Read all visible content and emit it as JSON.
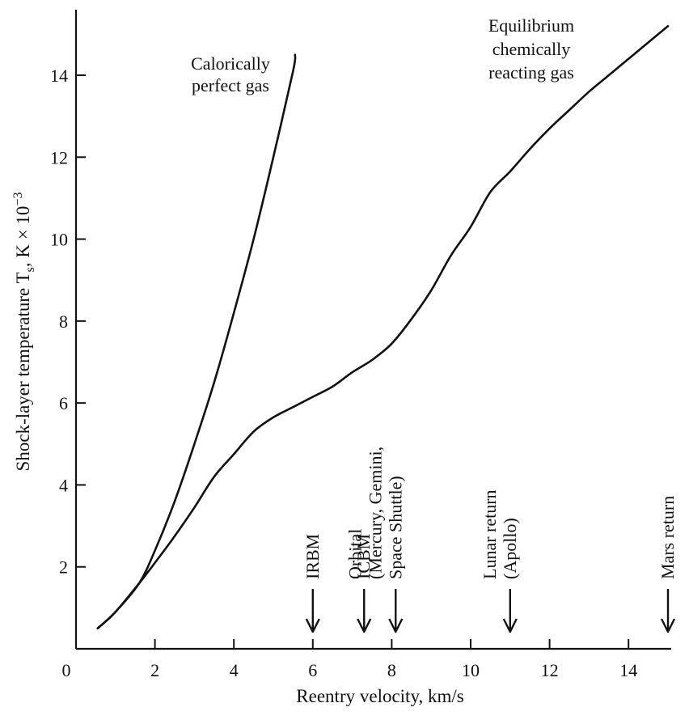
{
  "chart_data": {
    "type": "line",
    "xlabel": "Reentry velocity, km/s",
    "ylabel": "Shock-layer temperature T",
    "ylabel_sub": "s",
    "ylabel_tail": ", K × 10",
    "ylabel_exp": "−3",
    "xlim": [
      0,
      15
    ],
    "ylim": [
      0,
      15.5
    ],
    "x_ticks": [
      0,
      2,
      4,
      6,
      8,
      10,
      12,
      14
    ],
    "x_tick_labels": [
      "0",
      "2",
      "4",
      "6",
      "8",
      "10",
      "12",
      "14"
    ],
    "y_ticks": [
      2,
      4,
      6,
      8,
      10,
      12,
      14
    ],
    "y_tick_labels": [
      "2",
      "4",
      "6",
      "8",
      "10",
      "12",
      "14"
    ],
    "grid": false,
    "legend": "none",
    "series": [
      {
        "name": "Calorically perfect gas",
        "label_lines": [
          "Calorically",
          "perfect gas"
        ],
        "x": [
          0.55,
          1.0,
          1.6,
          2.0,
          2.5,
          3.0,
          3.5,
          4.0,
          4.5,
          5.0,
          5.5,
          5.55
        ],
        "y": [
          0.5,
          0.9,
          1.6,
          2.4,
          3.6,
          5.0,
          6.5,
          8.2,
          10.0,
          12.0,
          14.1,
          14.5
        ]
      },
      {
        "name": "Equilibrium chemically reacting gas",
        "label_lines": [
          "Equilibrium",
          "chemically",
          "reacting gas"
        ],
        "x": [
          0.55,
          1.0,
          1.6,
          2.0,
          2.5,
          3.0,
          3.5,
          4.0,
          4.5,
          5.0,
          5.5,
          6.0,
          6.5,
          7.0,
          7.5,
          8.0,
          8.5,
          9.0,
          9.5,
          10.0,
          10.5,
          11.0,
          11.5,
          12.0,
          12.5,
          13.0,
          13.5,
          14.0,
          14.5,
          15.0
        ],
        "y": [
          0.5,
          0.9,
          1.6,
          2.1,
          2.75,
          3.45,
          4.2,
          4.75,
          5.3,
          5.65,
          5.9,
          6.15,
          6.4,
          6.75,
          7.05,
          7.45,
          8.05,
          8.75,
          9.6,
          10.3,
          11.15,
          11.65,
          12.2,
          12.7,
          13.15,
          13.6,
          14.0,
          14.4,
          14.8,
          15.2
        ]
      }
    ],
    "markers": [
      {
        "x": 6.0,
        "lines": [
          "IRBM"
        ]
      },
      {
        "x": 7.3,
        "lines": [
          "ICBM"
        ]
      },
      {
        "x": 8.1,
        "lines": [
          "Orbital",
          "(Mercury, Gemini,",
          "Space Shuttle)"
        ]
      },
      {
        "x": 11.0,
        "lines": [
          "Lunar return",
          "(Apollo)"
        ]
      },
      {
        "x": 15.0,
        "lines": [
          "Mars return"
        ]
      }
    ]
  }
}
